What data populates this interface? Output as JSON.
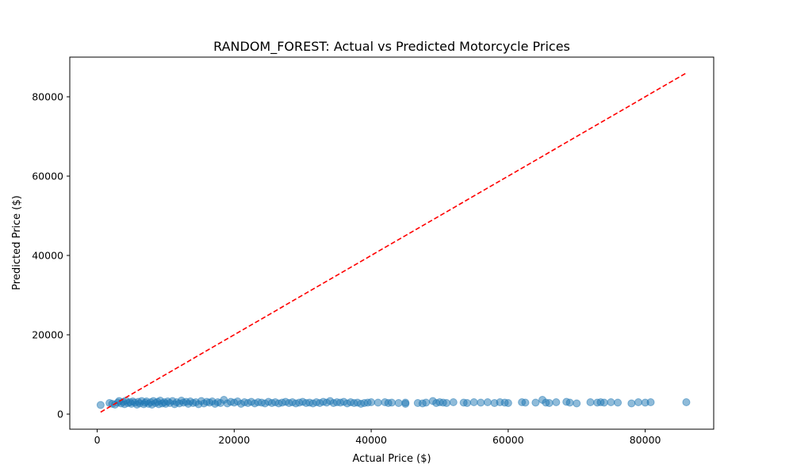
{
  "chart_data": {
    "type": "scatter",
    "title": "RANDOM_FOREST: Actual vs Predicted Motorcycle Prices",
    "xlabel": "Actual Price ($)",
    "ylabel": "Predicted Price ($)",
    "xlim": [
      -4000,
      90000
    ],
    "ylim": [
      -3800,
      90000
    ],
    "x_ticks": [
      0,
      20000,
      40000,
      60000,
      80000
    ],
    "y_ticks": [
      0,
      20000,
      40000,
      60000,
      80000
    ],
    "x_tick_labels": [
      "0",
      "20000",
      "40000",
      "60000",
      "80000"
    ],
    "y_tick_labels": [
      "0",
      "20000",
      "40000",
      "60000",
      "80000"
    ],
    "grid": false,
    "point_color": "#1f77b4",
    "point_opacity": 0.5,
    "reference_line": {
      "x": [
        500,
        86000
      ],
      "y": [
        500,
        86000
      ],
      "color": "#ff0000",
      "style": "dashed"
    },
    "series": [
      {
        "points": [
          [
            500,
            2300
          ],
          [
            1800,
            2800
          ],
          [
            2200,
            2600
          ],
          [
            2600,
            2400
          ],
          [
            3000,
            2900
          ],
          [
            3200,
            3300
          ],
          [
            3500,
            2700
          ],
          [
            3800,
            3100
          ],
          [
            4000,
            2500
          ],
          [
            4200,
            3400
          ],
          [
            4500,
            2800
          ],
          [
            4800,
            3000
          ],
          [
            5000,
            2600
          ],
          [
            5200,
            3200
          ],
          [
            5500,
            2900
          ],
          [
            5800,
            2400
          ],
          [
            6000,
            3100
          ],
          [
            6200,
            2700
          ],
          [
            6500,
            3300
          ],
          [
            6800,
            2500
          ],
          [
            7000,
            2900
          ],
          [
            7200,
            3200
          ],
          [
            7500,
            2600
          ],
          [
            7800,
            3000
          ],
          [
            8000,
            2400
          ],
          [
            8200,
            3300
          ],
          [
            8500,
            2800
          ],
          [
            8800,
            3100
          ],
          [
            9000,
            2500
          ],
          [
            9200,
            3400
          ],
          [
            9500,
            2700
          ],
          [
            9800,
            3000
          ],
          [
            10000,
            2600
          ],
          [
            10300,
            3200
          ],
          [
            10600,
            2800
          ],
          [
            11000,
            3300
          ],
          [
            11300,
            2500
          ],
          [
            11600,
            3000
          ],
          [
            12000,
            2700
          ],
          [
            12300,
            3400
          ],
          [
            12600,
            2900
          ],
          [
            13000,
            3100
          ],
          [
            13300,
            2600
          ],
          [
            13600,
            3200
          ],
          [
            14000,
            2800
          ],
          [
            14400,
            3000
          ],
          [
            14800,
            2500
          ],
          [
            15200,
            3300
          ],
          [
            15600,
            2700
          ],
          [
            16000,
            3100
          ],
          [
            16400,
            2900
          ],
          [
            16800,
            3200
          ],
          [
            17200,
            2600
          ],
          [
            17600,
            3000
          ],
          [
            18000,
            2800
          ],
          [
            18500,
            3600
          ],
          [
            19000,
            2700
          ],
          [
            19500,
            3100
          ],
          [
            20000,
            2900
          ],
          [
            20500,
            3200
          ],
          [
            21000,
            2600
          ],
          [
            21500,
            3000
          ],
          [
            22000,
            2800
          ],
          [
            22500,
            3100
          ],
          [
            23000,
            2700
          ],
          [
            23500,
            3000
          ],
          [
            24000,
            2900
          ],
          [
            24500,
            2700
          ],
          [
            25000,
            3100
          ],
          [
            25500,
            2800
          ],
          [
            26000,
            3000
          ],
          [
            26500,
            2700
          ],
          [
            27000,
            2900
          ],
          [
            27500,
            3100
          ],
          [
            28000,
            2800
          ],
          [
            28500,
            3000
          ],
          [
            29000,
            2700
          ],
          [
            29500,
            2900
          ],
          [
            30000,
            3100
          ],
          [
            30500,
            2800
          ],
          [
            31000,
            2900
          ],
          [
            31500,
            2700
          ],
          [
            32000,
            3000
          ],
          [
            32500,
            2800
          ],
          [
            33000,
            3100
          ],
          [
            33500,
            2900
          ],
          [
            34000,
            3300
          ],
          [
            34500,
            2800
          ],
          [
            35000,
            3000
          ],
          [
            35500,
            2900
          ],
          [
            36000,
            3100
          ],
          [
            36500,
            2700
          ],
          [
            37000,
            3000
          ],
          [
            37500,
            2800
          ],
          [
            38000,
            2900
          ],
          [
            38500,
            2600
          ],
          [
            39000,
            2800
          ],
          [
            39500,
            2900
          ],
          [
            40000,
            3000
          ],
          [
            41000,
            2900
          ],
          [
            42000,
            3000
          ],
          [
            42500,
            2800
          ],
          [
            43000,
            2900
          ],
          [
            44000,
            2800
          ],
          [
            45000,
            2900
          ],
          [
            45000,
            2600
          ],
          [
            46800,
            2800
          ],
          [
            47500,
            2700
          ],
          [
            48000,
            2900
          ],
          [
            49000,
            3300
          ],
          [
            49500,
            2800
          ],
          [
            50000,
            3000
          ],
          [
            50500,
            2900
          ],
          [
            51000,
            2800
          ],
          [
            52000,
            3000
          ],
          [
            53500,
            2900
          ],
          [
            54000,
            2800
          ],
          [
            55000,
            3000
          ],
          [
            56000,
            2900
          ],
          [
            57000,
            3000
          ],
          [
            58000,
            2800
          ],
          [
            58800,
            3000
          ],
          [
            59500,
            2900
          ],
          [
            60000,
            2800
          ],
          [
            62000,
            3000
          ],
          [
            62500,
            2900
          ],
          [
            64000,
            2900
          ],
          [
            65000,
            3600
          ],
          [
            65500,
            2900
          ],
          [
            66000,
            2800
          ],
          [
            67000,
            3000
          ],
          [
            68500,
            3100
          ],
          [
            69000,
            2900
          ],
          [
            70000,
            2700
          ],
          [
            72000,
            3000
          ],
          [
            73000,
            2900
          ],
          [
            73500,
            3000
          ],
          [
            74000,
            2900
          ],
          [
            75000,
            3000
          ],
          [
            76000,
            2900
          ],
          [
            78000,
            2700
          ],
          [
            79000,
            3000
          ],
          [
            80000,
            2900
          ],
          [
            80800,
            3000
          ],
          [
            86000,
            3000
          ]
        ]
      }
    ]
  }
}
